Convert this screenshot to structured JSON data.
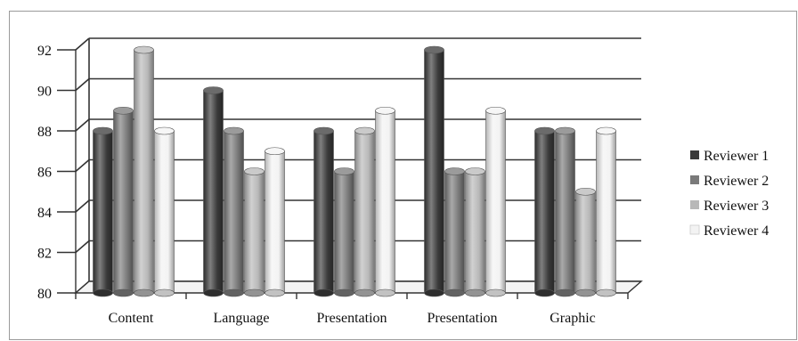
{
  "chart_data": {
    "type": "bar",
    "title": "",
    "xlabel": "",
    "ylabel": "",
    "categories": [
      "Content",
      "Language",
      "Presentation",
      "Presentation",
      "Graphic"
    ],
    "series": [
      {
        "name": "Reviewer 1",
        "values": [
          88,
          90,
          88,
          92,
          88
        ],
        "color": "#3a3a3a"
      },
      {
        "name": "Reviewer 2",
        "values": [
          89,
          88,
          86,
          86,
          88
        ],
        "color": "#7a7a7a"
      },
      {
        "name": "Reviewer 3",
        "values": [
          92,
          86,
          88,
          86,
          85
        ],
        "color": "#b8b8b8"
      },
      {
        "name": "Reviewer 4",
        "values": [
          88,
          87,
          89,
          89,
          88
        ],
        "color": "#f3f3f3"
      }
    ],
    "ylim": [
      80,
      92
    ],
    "yticks": [
      80,
      82,
      84,
      86,
      88,
      90,
      92
    ],
    "grid": true,
    "legend_position": "right",
    "style": "3d-cylinder"
  }
}
